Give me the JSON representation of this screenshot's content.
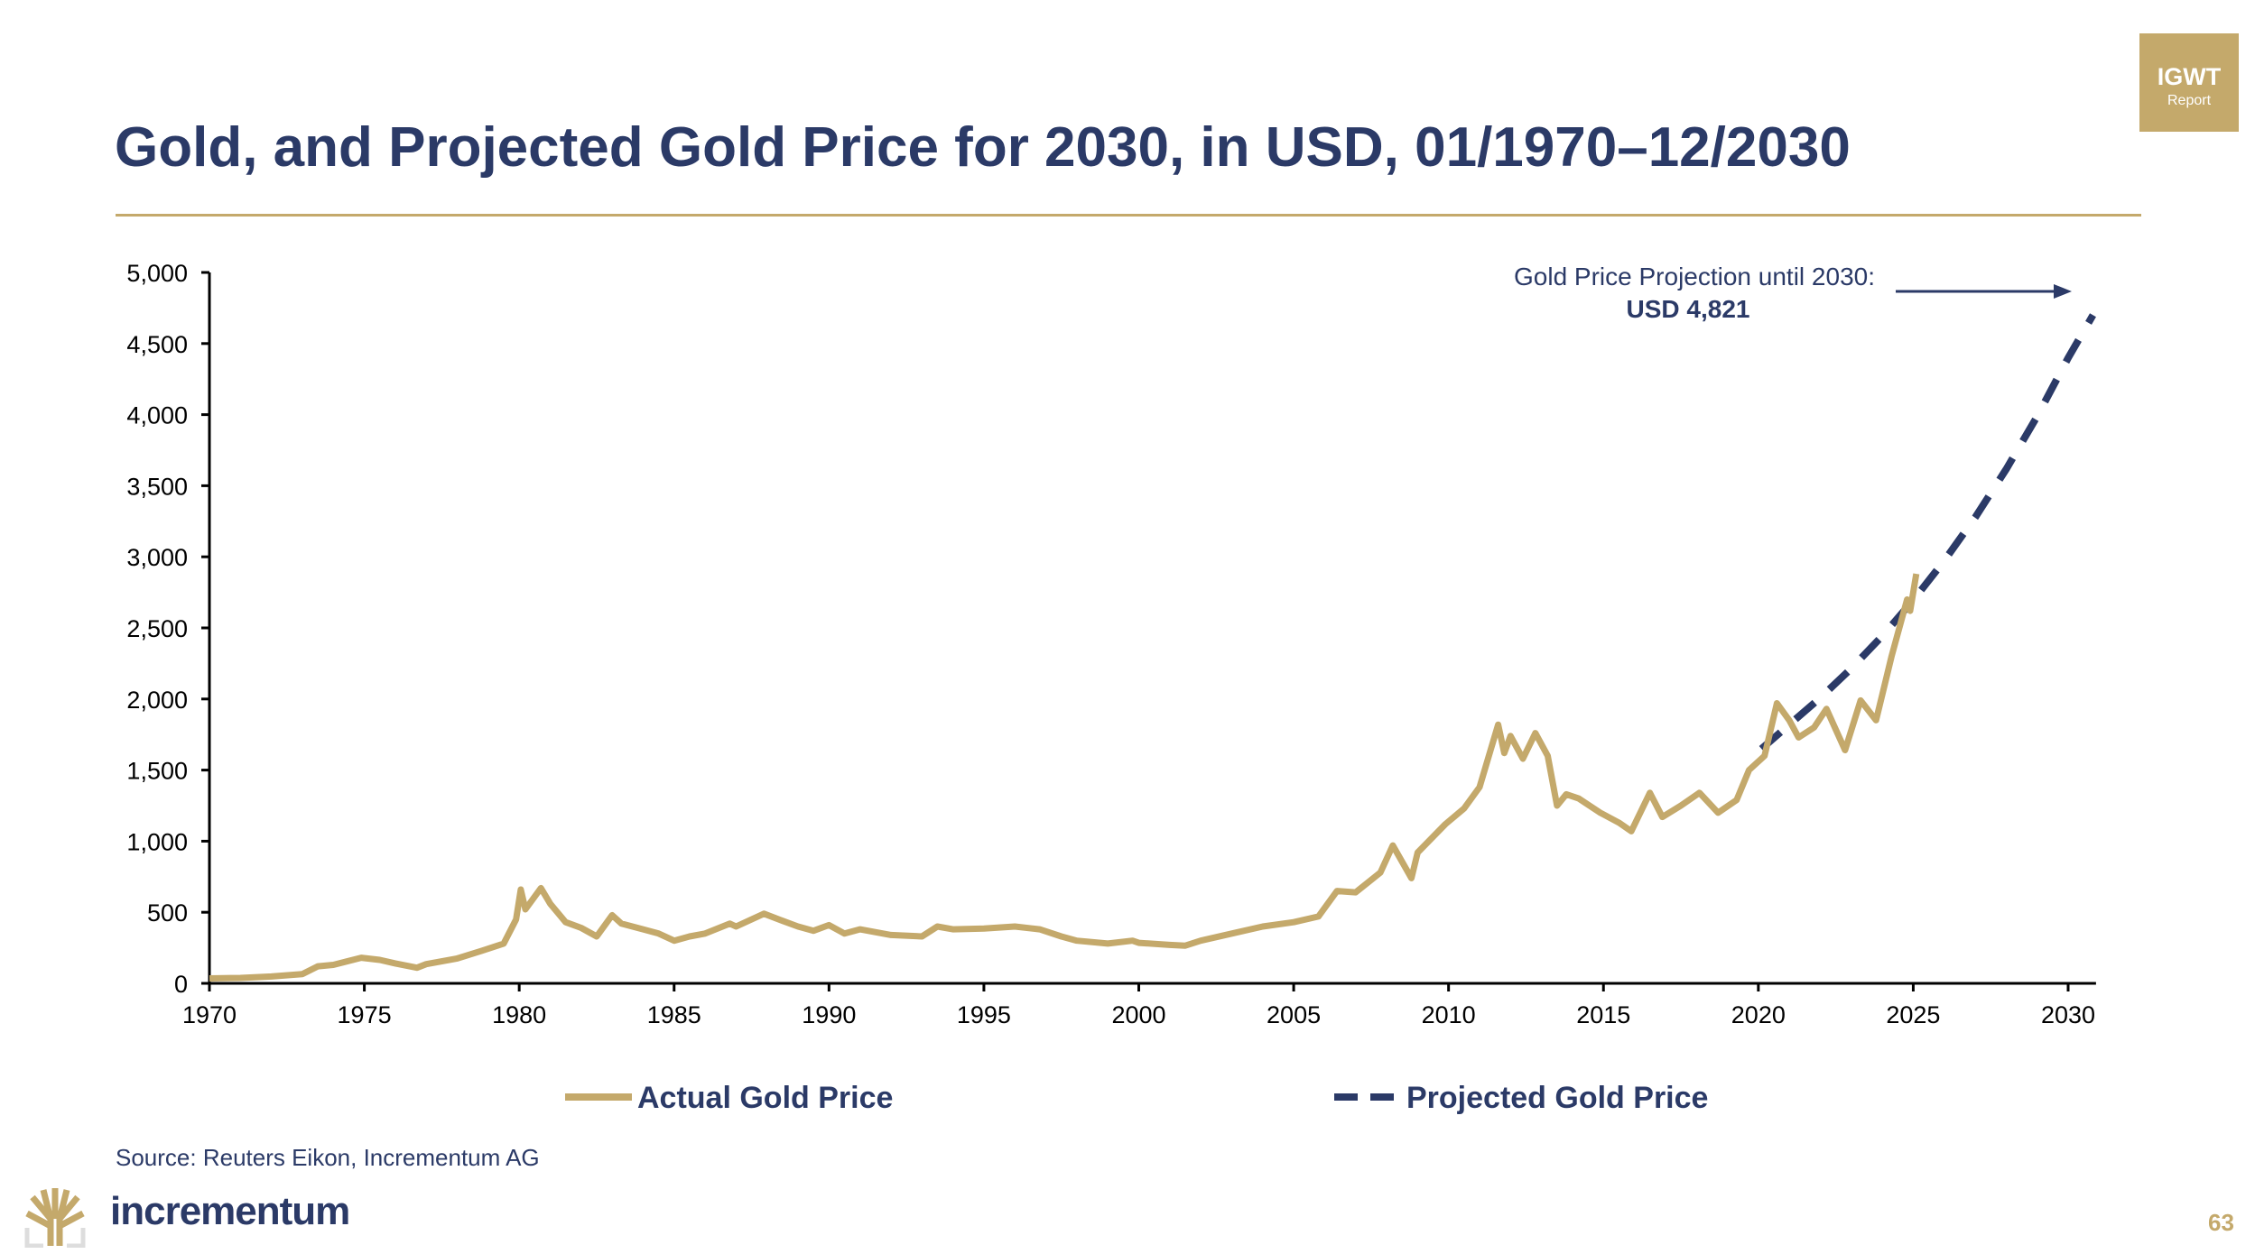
{
  "header": {
    "title": "Gold, and Projected Gold Price for 2030, in USD, 01/1970–12/2030"
  },
  "badge": {
    "line1": "IGWT",
    "line2": "Report"
  },
  "footer": {
    "source": "Source: Reuters Eikon, Incrementum AG",
    "brand": "incrementum",
    "page_number": "63"
  },
  "colors": {
    "gold": "#c4a96b",
    "navy": "#2b3a67"
  },
  "chart_data": {
    "type": "line",
    "title": "Gold, and Projected Gold Price for 2030, in USD, 01/1970–12/2030",
    "xlabel": "",
    "ylabel": "",
    "xlim": [
      1970,
      2030.9
    ],
    "ylim": [
      0,
      5000
    ],
    "x_ticks": [
      1970,
      1975,
      1980,
      1985,
      1990,
      1995,
      2000,
      2005,
      2010,
      2015,
      2020,
      2025,
      2030
    ],
    "x_tick_labels": [
      "1970",
      "1975",
      "1980",
      "1985",
      "1990",
      "1995",
      "2000",
      "2005",
      "2010",
      "2015",
      "2020",
      "2025",
      "2030"
    ],
    "y_ticks": [
      0,
      500,
      1000,
      1500,
      2000,
      2500,
      3000,
      3500,
      4000,
      4500,
      5000
    ],
    "y_tick_labels": [
      "0",
      "500",
      "1,000",
      "1,500",
      "2,000",
      "2,500",
      "3,000",
      "3,500",
      "4,000",
      "4,500",
      "5,000"
    ],
    "grid": false,
    "legend": {
      "placement": "bottom",
      "entries": [
        "Actual Gold Price",
        "Projected Gold Price"
      ]
    },
    "annotation": {
      "line1": "Gold Price Projection until 2030:",
      "line2": "USD 4,821"
    },
    "series": [
      {
        "name": "Actual Gold Price",
        "style": "solid",
        "x": [
          1970,
          1971,
          1972,
          1973,
          1973.5,
          1974,
          1974.9,
          1975.5,
          1976,
          1976.7,
          1977,
          1978,
          1978.8,
          1979.5,
          1979.9,
          1980.05,
          1980.2,
          1980.7,
          1981,
          1981.5,
          1982,
          1982.5,
          1983,
          1983.3,
          1984,
          1984.5,
          1985,
          1985.5,
          1986,
          1986.8,
          1987,
          1987.9,
          1988.5,
          1989,
          1989.5,
          1990,
          1990.5,
          1991,
          1992,
          1993,
          1993.5,
          1994,
          1995,
          1996,
          1996.8,
          1997.5,
          1998,
          1999,
          1999.8,
          2000,
          2001,
          2001.5,
          2002,
          2003,
          2004,
          2005,
          2005.8,
          2006.4,
          2007,
          2007.8,
          2008.2,
          2008.8,
          2009,
          2009.9,
          2010.5,
          2011,
          2011.6,
          2011.8,
          2012,
          2012.4,
          2012.8,
          2013.2,
          2013.5,
          2013.8,
          2014.2,
          2014.9,
          2015.5,
          2015.9,
          2016.5,
          2016.9,
          2017.5,
          2018.1,
          2018.7,
          2019.3,
          2019.7,
          2020.2,
          2020.6,
          2021,
          2021.3,
          2021.8,
          2022.2,
          2022.8,
          2023.3,
          2023.8,
          2024,
          2024.3,
          2024.8,
          2024.9,
          2025.1
        ],
        "values": [
          35,
          38,
          48,
          65,
          120,
          130,
          180,
          165,
          140,
          110,
          135,
          175,
          230,
          280,
          450,
          660,
          520,
          670,
          560,
          430,
          390,
          330,
          480,
          420,
          380,
          350,
          300,
          330,
          350,
          420,
          400,
          490,
          440,
          400,
          370,
          410,
          350,
          380,
          340,
          330,
          400,
          380,
          385,
          400,
          380,
          330,
          300,
          280,
          300,
          285,
          270,
          265,
          300,
          350,
          400,
          430,
          470,
          650,
          640,
          780,
          970,
          740,
          920,
          1120,
          1230,
          1380,
          1820,
          1620,
          1740,
          1580,
          1760,
          1600,
          1250,
          1330,
          1300,
          1200,
          1130,
          1070,
          1340,
          1170,
          1250,
          1340,
          1200,
          1290,
          1500,
          1600,
          1970,
          1850,
          1730,
          1800,
          1930,
          1640,
          1990,
          1850,
          2030,
          2300,
          2700,
          2620,
          2880
        ]
      },
      {
        "name": "Projected Gold Price",
        "style": "dashed",
        "x": [
          2020.1,
          2021,
          2022,
          2023,
          2024,
          2025,
          2026,
          2027,
          2028,
          2029,
          2030,
          2030.8
        ],
        "values": [
          1650,
          1820,
          2008,
          2215,
          2443,
          2695,
          2972,
          3278,
          3616,
          3988,
          4399,
          4700
        ]
      }
    ]
  }
}
